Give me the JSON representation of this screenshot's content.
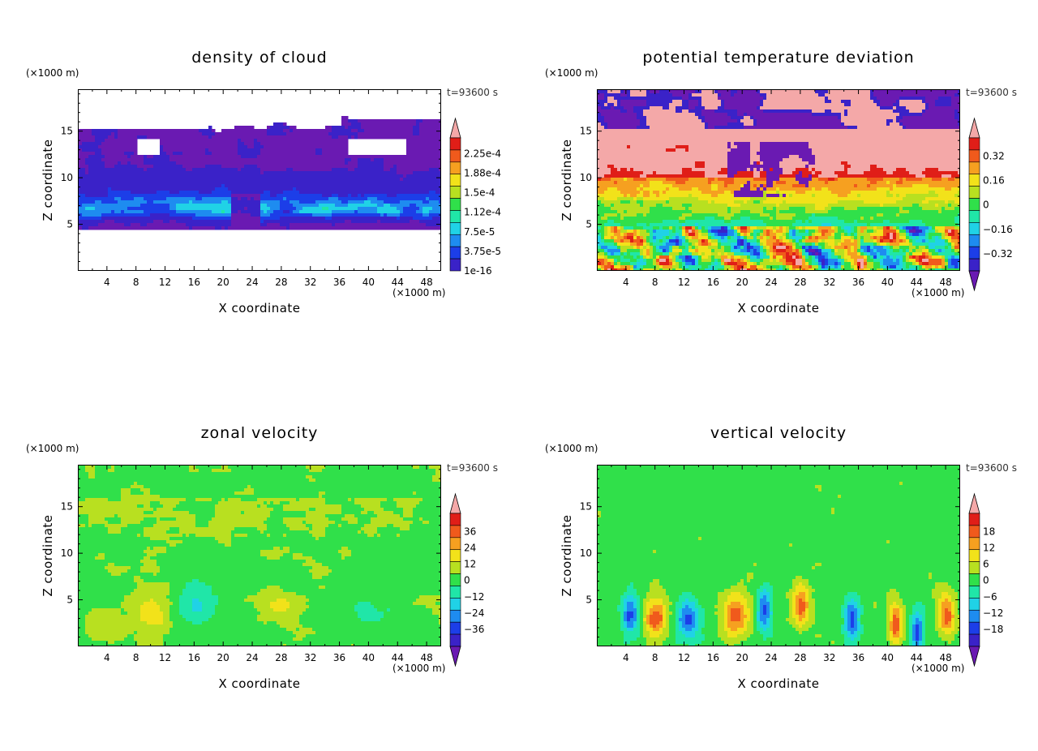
{
  "chart_data": [
    {
      "type": "heatmap",
      "title": "density of cloud",
      "xlabel": "X coordinate",
      "ylabel": "Z coordinate",
      "x_unit": "(×1000 m)",
      "y_unit": "(×1000 m)",
      "time_label": "t=93600 s",
      "xlim": [
        0,
        50
      ],
      "ylim": [
        0,
        19.5
      ],
      "x_ticks": [
        "4",
        "8",
        "12",
        "16",
        "20",
        "24",
        "28",
        "32",
        "36",
        "40",
        "44",
        "48"
      ],
      "y_ticks": [
        "5",
        "10",
        "15"
      ],
      "colorbar_labels": [
        "2.25e-4",
        "1.88e-4",
        "1.5e-4",
        "1.12e-4",
        "7.5e-5",
        "3.75e-5",
        "1e-16"
      ],
      "colors": [
        "#6a1ab2",
        "#3a22c8",
        "#1c3ee8",
        "#1e8cf0",
        "#20d2e6",
        "#20e6a8",
        "#30e04a",
        "#b8e020",
        "#f2e21a",
        "#f6a020",
        "#f05a1c",
        "#e01e18",
        "#f4a8a8"
      ]
    },
    {
      "type": "heatmap",
      "title": "potential temperature deviation",
      "xlabel": "X coordinate",
      "ylabel": "Z coordinate",
      "x_unit": "(×1000 m)",
      "y_unit": "(×1000 m)",
      "time_label": "t=93600 s",
      "xlim": [
        0,
        50
      ],
      "ylim": [
        0,
        19.5
      ],
      "x_ticks": [
        "4",
        "8",
        "12",
        "16",
        "20",
        "24",
        "28",
        "32",
        "36",
        "40",
        "44",
        "48"
      ],
      "y_ticks": [
        "5",
        "10",
        "15"
      ],
      "colorbar_labels": [
        "0.32",
        "0.16",
        "0",
        "−0.16",
        "−0.32"
      ],
      "colors": [
        "#6a1ab2",
        "#3a22c8",
        "#1c3ee8",
        "#1e8cf0",
        "#20d2e6",
        "#20e6a8",
        "#30e04a",
        "#b8e020",
        "#f2e21a",
        "#f6a020",
        "#f05a1c",
        "#e01e18",
        "#f4a8a8"
      ]
    },
    {
      "type": "heatmap",
      "title": "zonal velocity",
      "xlabel": "X coordinate",
      "ylabel": "Z coordinate",
      "x_unit": "(×1000 m)",
      "y_unit": "(×1000 m)",
      "time_label": "t=93600 s",
      "xlim": [
        0,
        50
      ],
      "ylim": [
        0,
        19.5
      ],
      "x_ticks": [
        "4",
        "8",
        "12",
        "16",
        "20",
        "24",
        "28",
        "32",
        "36",
        "40",
        "44",
        "48"
      ],
      "y_ticks": [
        "5",
        "10",
        "15"
      ],
      "colorbar_labels": [
        "36",
        "24",
        "12",
        "0",
        "−12",
        "−24",
        "−36"
      ],
      "colors": [
        "#6a1ab2",
        "#3a22c8",
        "#1c3ee8",
        "#1e8cf0",
        "#20d2e6",
        "#20e6a8",
        "#30e04a",
        "#b8e020",
        "#f2e21a",
        "#f6a020",
        "#f05a1c",
        "#e01e18",
        "#f4a8a8"
      ]
    },
    {
      "type": "heatmap",
      "title": "vertical velocity",
      "xlabel": "X coordinate",
      "ylabel": "Z coordinate",
      "x_unit": "(×1000 m)",
      "y_unit": "(×1000 m)",
      "time_label": "t=93600 s",
      "xlim": [
        0,
        50
      ],
      "ylim": [
        0,
        19.5
      ],
      "x_ticks": [
        "4",
        "8",
        "12",
        "16",
        "20",
        "24",
        "28",
        "32",
        "36",
        "40",
        "44",
        "48"
      ],
      "y_ticks": [
        "5",
        "10",
        "15"
      ],
      "colorbar_labels": [
        "18",
        "12",
        "6",
        "0",
        "−6",
        "−12",
        "−18"
      ],
      "colors": [
        "#6a1ab2",
        "#3a22c8",
        "#1c3ee8",
        "#1e8cf0",
        "#20d2e6",
        "#20e6a8",
        "#30e04a",
        "#b8e020",
        "#f2e21a",
        "#f6a020",
        "#f05a1c",
        "#e01e18",
        "#f4a8a8"
      ]
    }
  ]
}
